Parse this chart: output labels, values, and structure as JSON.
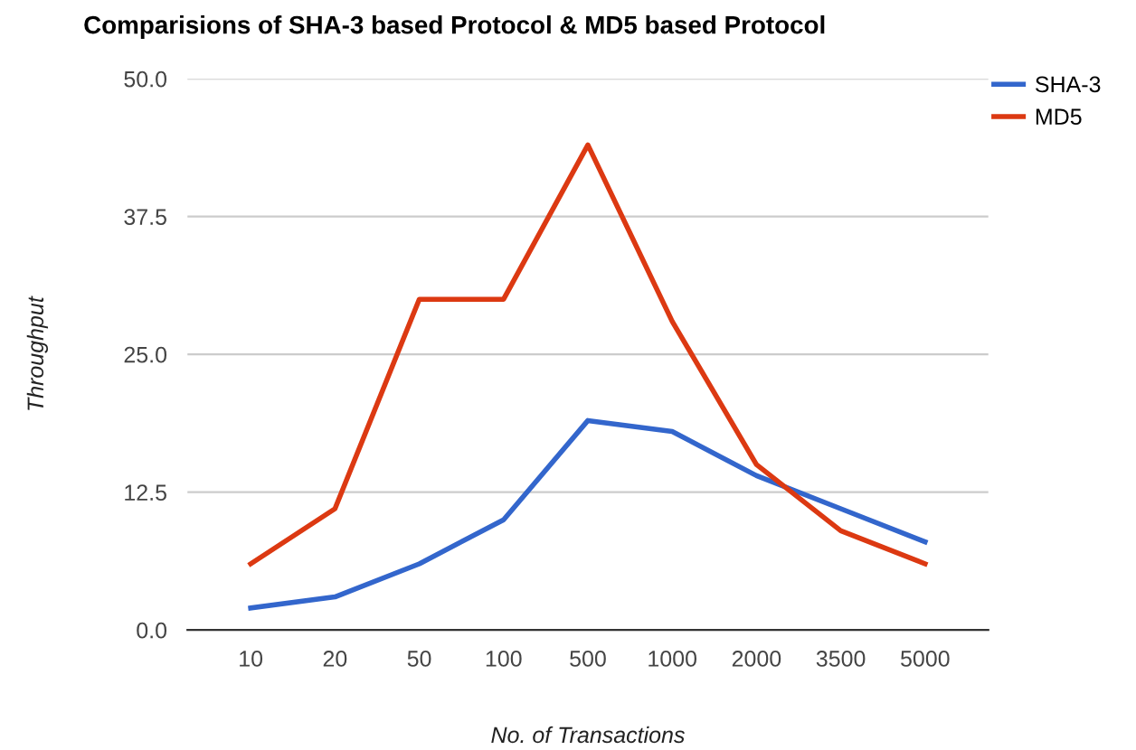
{
  "chart_data": {
    "type": "line",
    "title": "Comparisions of SHA-3 based Protocol & MD5 based Protocol",
    "xlabel": "No. of Transactions",
    "ylabel": "Throughput",
    "categories": [
      "10",
      "20",
      "50",
      "100",
      "500",
      "1000",
      "2000",
      "3500",
      "5000"
    ],
    "series": [
      {
        "name": "SHA-3",
        "color": "#3366cc",
        "values": [
          2,
          3,
          6,
          10,
          19,
          18,
          14,
          11,
          8
        ]
      },
      {
        "name": "MD5",
        "color": "#dc3912",
        "values": [
          6,
          11,
          30,
          30,
          44,
          28,
          15,
          9,
          6
        ]
      }
    ],
    "ylim": [
      0,
      50
    ],
    "yticks": [
      {
        "value": 0,
        "label": "0.0"
      },
      {
        "value": 12.5,
        "label": "12.5"
      },
      {
        "value": 25,
        "label": "25.0"
      },
      {
        "value": 37.5,
        "label": "37.5"
      },
      {
        "value": 50,
        "label": "50.0"
      }
    ],
    "grid": "y",
    "legend": "right",
    "marker": "none",
    "line_style": "solid"
  }
}
